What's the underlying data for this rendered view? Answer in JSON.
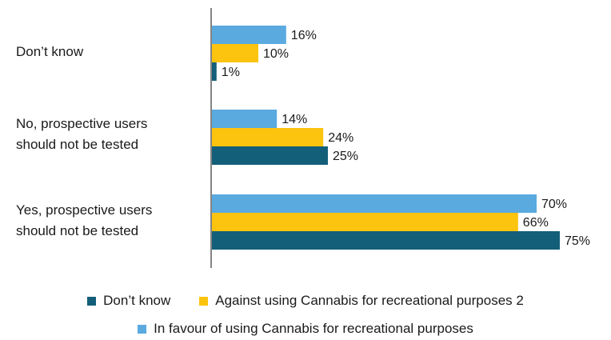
{
  "chart_data": {
    "type": "bar",
    "orientation": "horizontal",
    "categories": [
      [
        "Don’t know"
      ],
      [
        "No, prospective users",
        "should not be tested"
      ],
      [
        "Yes, prospective users",
        "should not be tested"
      ]
    ],
    "series": [
      {
        "name": "In favour of using Cannabis for recreational purposes",
        "color": "#5aaae0",
        "values": [
          16,
          14,
          70
        ]
      },
      {
        "name": "Against using Cannabis for recreational purposes 2",
        "color": "#fcc30f",
        "values": [
          10,
          24,
          66
        ]
      },
      {
        "name": "Don’t know",
        "color": "#135f7a",
        "values": [
          1,
          25,
          75
        ]
      }
    ],
    "value_suffix": "%",
    "xlim": [
      0,
      75
    ],
    "grid": false,
    "legend_position": "bottom"
  }
}
